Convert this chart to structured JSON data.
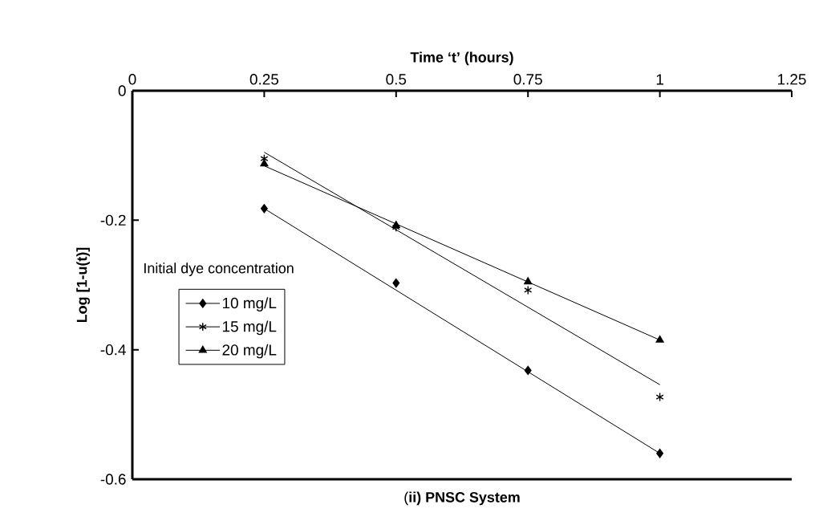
{
  "chart_data": {
    "type": "scatter",
    "title": "(**ii) PNSC System**",
    "xlabel": "Time ‘t’ (hours)",
    "ylabel": "Log [1-u(t)]",
    "legend_title": "Initial dye concentration",
    "xlim": [
      0,
      1.25
    ],
    "xticks": [
      0,
      0.25,
      0.5,
      0.75,
      1,
      1.25
    ],
    "ylim": [
      -0.6,
      0
    ],
    "yticks": [
      0,
      -0.2,
      -0.4,
      -0.6
    ],
    "grid": false,
    "legend": "left",
    "series": [
      {
        "name": "10 mg/L",
        "color": "#000000",
        "marker": "diamond",
        "x": [
          0.25,
          0.5,
          0.75,
          1
        ],
        "values": [
          -0.182,
          -0.297,
          -0.432,
          -0.56
        ]
      },
      {
        "name": "15 mg/L",
        "color": "#000000",
        "marker": "cross",
        "x": [
          0.25,
          0.5,
          0.75,
          1
        ],
        "values": [
          -0.105,
          -0.211,
          -0.308,
          -0.473
        ]
      },
      {
        "name": "20 mg/L",
        "color": "#000000",
        "marker": "triangle",
        "x": [
          0.25,
          0.5,
          0.75,
          1
        ],
        "values": [
          -0.113,
          -0.208,
          -0.295,
          -0.385
        ]
      },
      {
        "type": "line",
        "color": "#000000",
        "marker": "none",
        "line_style": "solid",
        "x": [
          0.25,
          1
        ],
        "values": [
          -0.182,
          -0.56
        ]
      },
      {
        "type": "line",
        "color": "#000000",
        "marker": "none",
        "line_style": "solid",
        "x": [
          0.25,
          1
        ],
        "values": [
          -0.095,
          -0.454
        ]
      },
      {
        "type": "line",
        "color": "#000000",
        "marker": "none",
        "line_style": "solid",
        "x": [
          0.25,
          1
        ],
        "values": [
          -0.116,
          -0.385
        ]
      }
    ]
  }
}
